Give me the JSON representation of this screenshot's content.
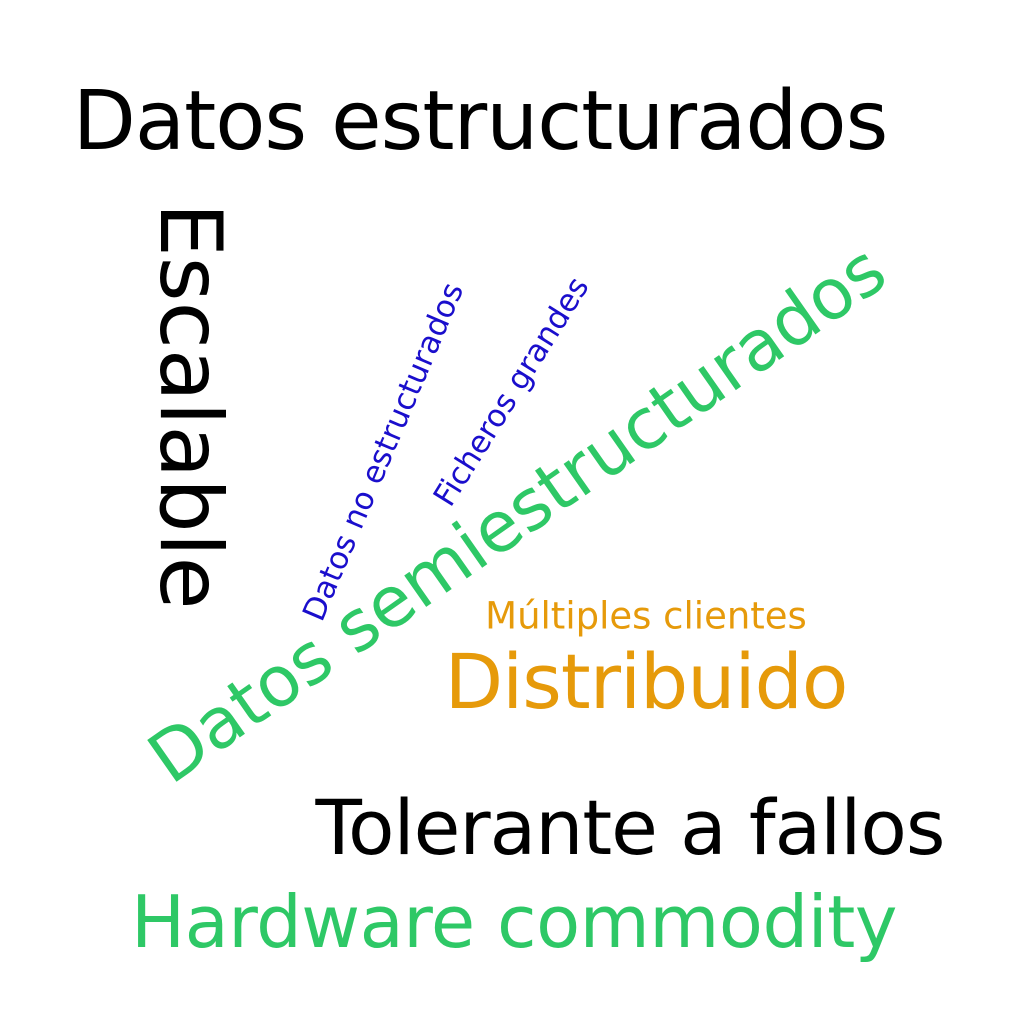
{
  "words": {
    "datos_estructurados": {
      "text": "Datos estructurados",
      "color": "#000000"
    },
    "escalable": {
      "text": "Escalable",
      "color": "#000000"
    },
    "datos_no_estructurados": {
      "text": "Datos no estructurados",
      "color": "#1a0ecc"
    },
    "ficheros_grandes": {
      "text": "Ficheros grandes",
      "color": "#1a0ecc"
    },
    "datos_semiestructurados": {
      "text": "Datos semiestructurados",
      "color": "#2ec866"
    },
    "multiples_clientes": {
      "text": "Múltiples clientes",
      "color": "#e69a0a"
    },
    "distribuido": {
      "text": "Distribuido",
      "color": "#e69a0a"
    },
    "tolerante_a_fallos": {
      "text": "Tolerante a fallos",
      "color": "#000000"
    },
    "hardware_commodity": {
      "text": "Hardware commodity",
      "color": "#2ec866"
    }
  }
}
